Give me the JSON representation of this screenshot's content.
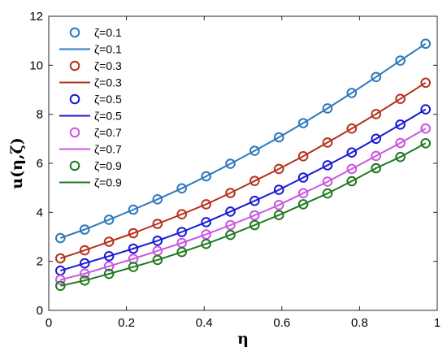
{
  "chart_data": {
    "type": "line",
    "title": "",
    "xlabel": "η",
    "ylabel": "u(η,ζ)",
    "xlim": [
      0,
      1
    ],
    "ylim": [
      0,
      12
    ],
    "xticks": [
      0,
      0.2,
      0.4,
      0.6,
      0.8,
      1
    ],
    "xtick_labels": [
      "0",
      "0.2",
      "0.4",
      "0.6",
      "0.8",
      "1"
    ],
    "yticks": [
      0,
      2,
      4,
      6,
      8,
      10,
      12
    ],
    "ytick_labels": [
      "0",
      "2",
      "4",
      "6",
      "8",
      "10",
      "12"
    ],
    "grid": false,
    "legend_position": "top-left",
    "x": [
      0.03,
      0.0925,
      0.155,
      0.2175,
      0.28,
      0.3425,
      0.405,
      0.4675,
      0.53,
      0.5925,
      0.655,
      0.7175,
      0.78,
      0.8425,
      0.905,
      0.97
    ],
    "series": [
      {
        "name": "ζ=0.1",
        "marker": "circle",
        "color": "#2e78bd",
        "values": [
          2.95,
          3.3,
          3.7,
          4.11,
          4.53,
          4.98,
          5.47,
          5.98,
          6.51,
          7.06,
          7.64,
          8.24,
          8.87,
          9.52,
          10.19,
          10.88
        ]
      },
      {
        "name": "ζ=0.1",
        "marker": "line",
        "color": "#2e78bd",
        "values": [
          2.95,
          3.3,
          3.7,
          4.11,
          4.53,
          4.98,
          5.47,
          5.98,
          6.51,
          7.06,
          7.64,
          8.24,
          8.87,
          9.52,
          10.19,
          10.88
        ]
      },
      {
        "name": "ζ=0.3",
        "marker": "circle",
        "color": "#b5321f",
        "values": [
          2.12,
          2.45,
          2.8,
          3.15,
          3.53,
          3.92,
          4.33,
          4.79,
          5.28,
          5.77,
          6.29,
          6.85,
          7.42,
          8.01,
          8.63,
          9.29
        ]
      },
      {
        "name": "ζ=0.3",
        "marker": "line",
        "color": "#b5321f",
        "values": [
          2.12,
          2.45,
          2.8,
          3.15,
          3.53,
          3.92,
          4.33,
          4.79,
          5.28,
          5.77,
          6.29,
          6.85,
          7.42,
          8.01,
          8.63,
          9.29
        ]
      },
      {
        "name": "ζ=0.5",
        "marker": "circle",
        "color": "#1a1ad6",
        "values": [
          1.62,
          1.92,
          2.21,
          2.52,
          2.84,
          3.2,
          3.6,
          4.03,
          4.47,
          4.92,
          5.42,
          5.92,
          6.44,
          7.0,
          7.58,
          8.2
        ]
      },
      {
        "name": "ζ=0.5",
        "marker": "line",
        "color": "#1a1ad6",
        "values": [
          1.62,
          1.92,
          2.21,
          2.52,
          2.84,
          3.2,
          3.6,
          4.03,
          4.47,
          4.92,
          5.42,
          5.92,
          6.44,
          7.0,
          7.58,
          8.2
        ]
      },
      {
        "name": "ζ=0.7",
        "marker": "circle",
        "color": "#cc55e0",
        "values": [
          1.25,
          1.5,
          1.8,
          2.1,
          2.43,
          2.75,
          3.1,
          3.48,
          3.88,
          4.3,
          4.78,
          5.25,
          5.77,
          6.3,
          6.83,
          7.42
        ]
      },
      {
        "name": "ζ=0.7",
        "marker": "line",
        "color": "#cc55e0",
        "values": [
          1.25,
          1.5,
          1.8,
          2.1,
          2.43,
          2.75,
          3.1,
          3.48,
          3.88,
          4.3,
          4.78,
          5.25,
          5.77,
          6.3,
          6.83,
          7.42
        ]
      },
      {
        "name": "ζ=0.9",
        "marker": "circle",
        "color": "#1e7a1e",
        "values": [
          1.0,
          1.22,
          1.49,
          1.77,
          2.06,
          2.38,
          2.71,
          3.08,
          3.48,
          3.89,
          4.33,
          4.77,
          5.27,
          5.8,
          6.26,
          6.82
        ]
      },
      {
        "name": "ζ=0.9",
        "marker": "line",
        "color": "#1e7a1e",
        "values": [
          1.0,
          1.22,
          1.49,
          1.77,
          2.06,
          2.38,
          2.71,
          3.08,
          3.48,
          3.89,
          4.33,
          4.77,
          5.27,
          5.8,
          6.26,
          6.82
        ]
      }
    ]
  }
}
